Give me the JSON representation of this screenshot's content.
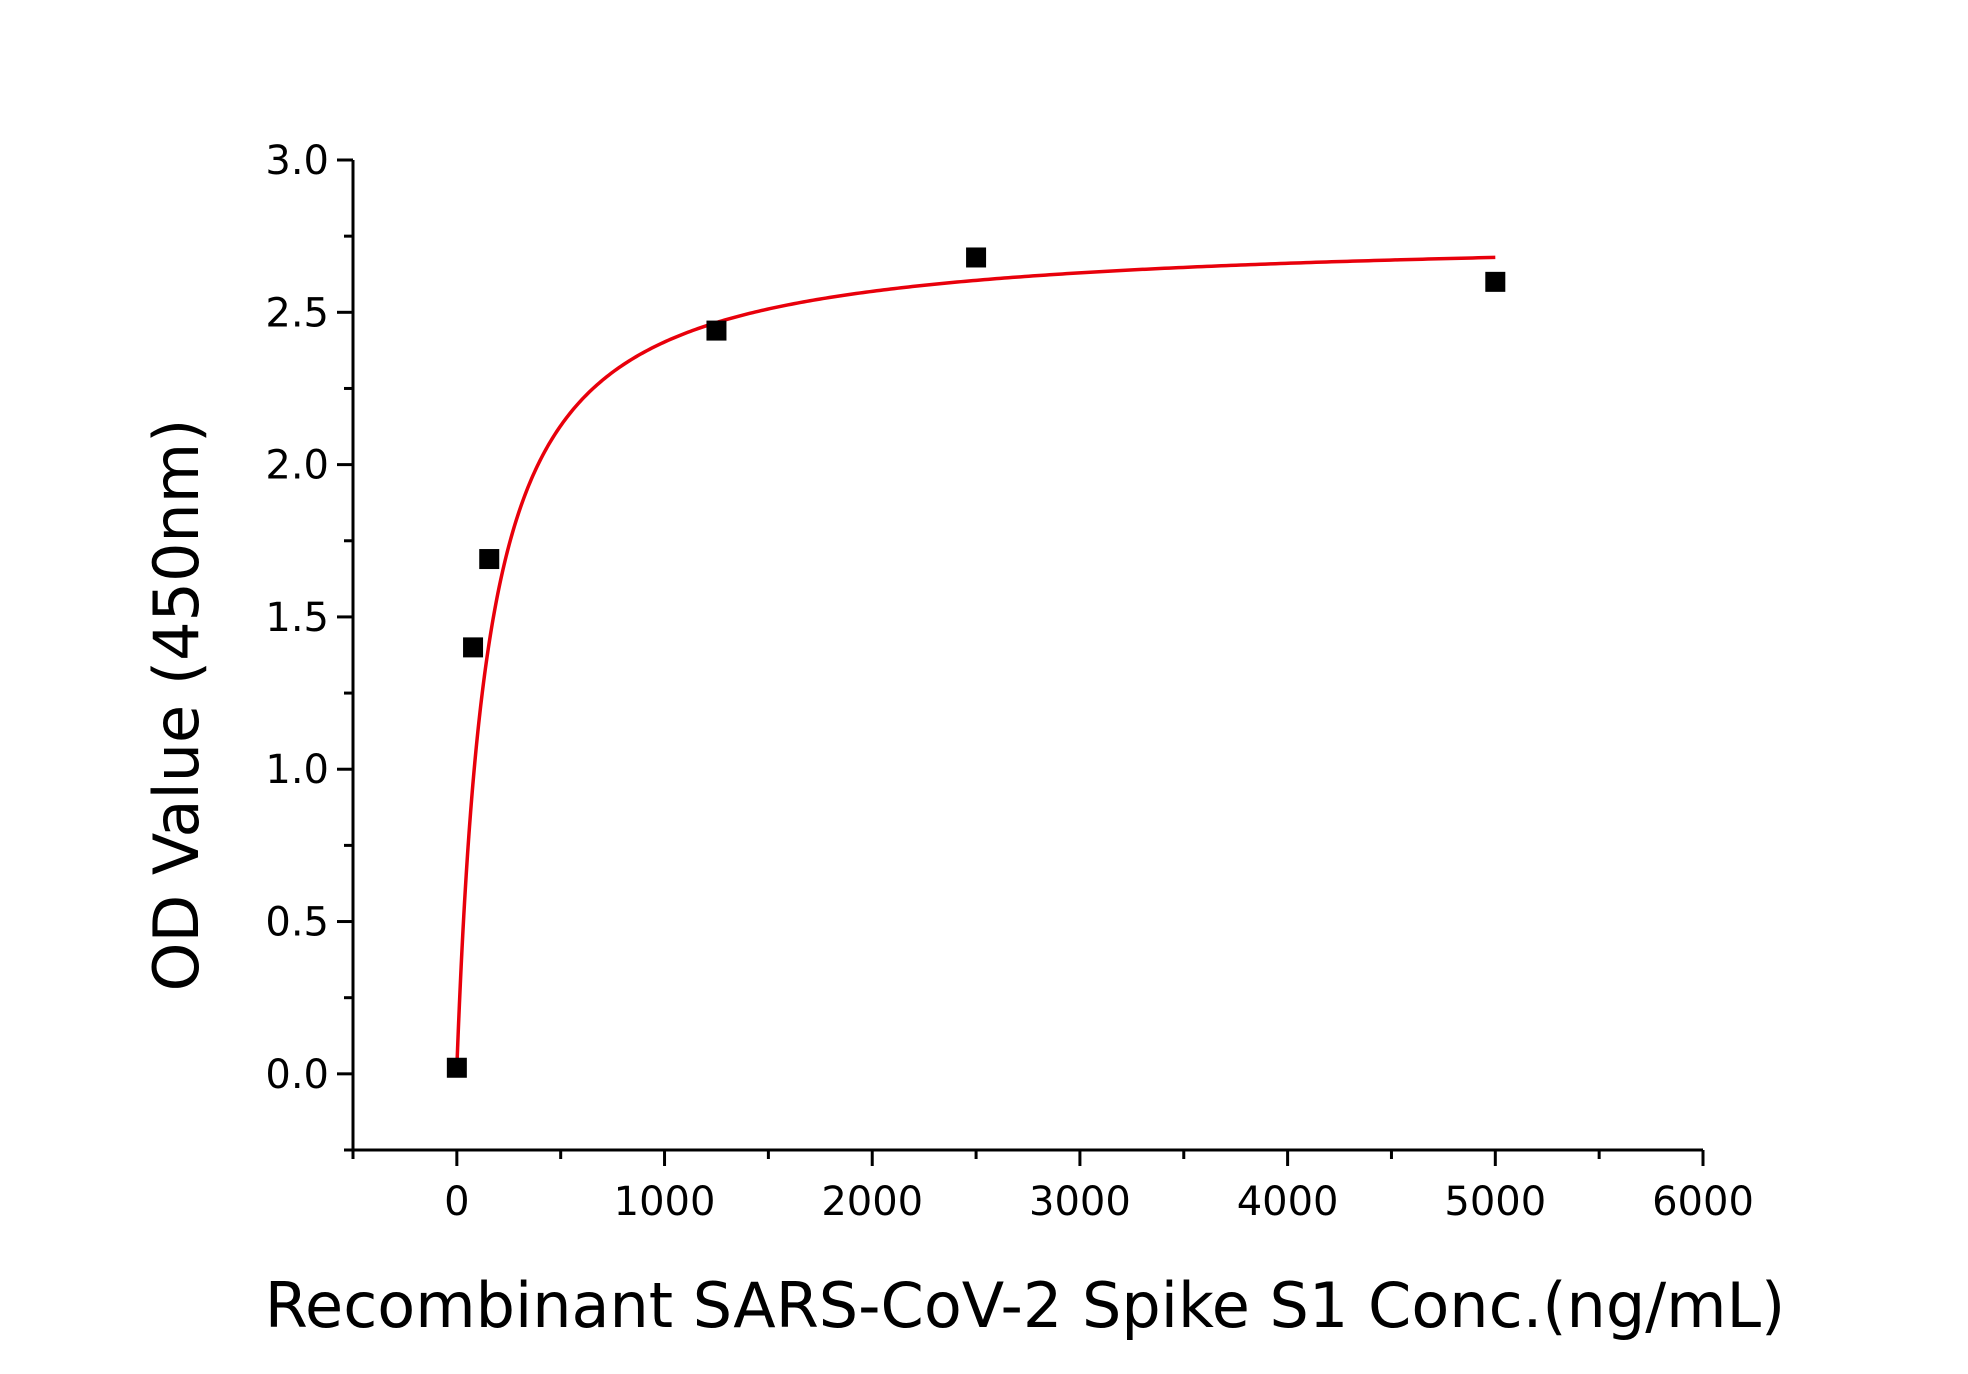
{
  "chart_data": {
    "type": "scatter",
    "xlabel": "Recombinant SARS-CoV-2 Spike S1 Conc.(ng/mL)",
    "ylabel": "OD Value (450nm)",
    "xlim": [
      -500,
      6000
    ],
    "ylim": [
      -0.25,
      3.0
    ],
    "xticks": [
      0,
      1000,
      2000,
      3000,
      4000,
      5000,
      6000
    ],
    "xtick_labels": [
      "0",
      "1000",
      "2000",
      "3000",
      "4000",
      "5000",
      "6000"
    ],
    "yticks": [
      0.0,
      0.5,
      1.0,
      1.5,
      2.0,
      2.5,
      3.0
    ],
    "ytick_labels": [
      "0.0",
      "0.5",
      "1.0",
      "1.5",
      "2.0",
      "2.5",
      "3.0"
    ],
    "grid": false,
    "points": {
      "x": [
        0,
        78,
        156,
        1250,
        2500,
        5000
      ],
      "y": [
        0.02,
        1.4,
        1.69,
        2.44,
        2.68,
        2.6
      ],
      "marker": "square",
      "color": "#000000"
    },
    "fit_curve": {
      "color": "#e8000b",
      "x_range": [
        0,
        5000
      ],
      "model": "hyperbolic",
      "vmax": 2.74,
      "k": 150,
      "y0": 0.02
    }
  }
}
